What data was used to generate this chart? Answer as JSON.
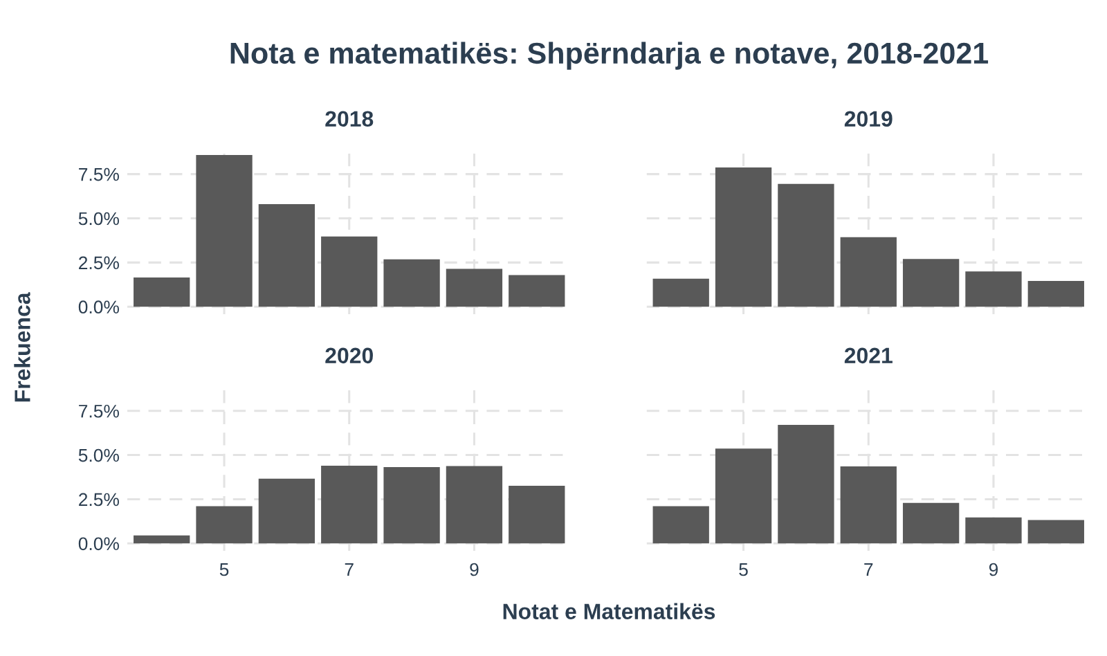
{
  "chart_data": [
    {
      "type": "bar",
      "title": "2018",
      "annotations": [
        "Nota e matematikës: Shpërndarja e notave, 2018-2021"
      ],
      "ylabel": "Frekuenca",
      "x": [
        4,
        5,
        6,
        7,
        8,
        9,
        10
      ],
      "values": [
        1.65,
        8.58,
        5.8,
        3.97,
        2.68,
        2.14,
        1.79
      ],
      "color": "#595959",
      "xlim": [
        3.45,
        10.55
      ],
      "xticks": [
        {
          "value": 5,
          "label": null
        },
        {
          "value": 7,
          "label": null
        },
        {
          "value": 9,
          "label": null
        }
      ],
      "ylim": [
        -0.43,
        9.0
      ],
      "yticks": [
        {
          "value": 0,
          "label": "0.0%"
        },
        {
          "value": 2.5,
          "label": "2.5%"
        },
        {
          "value": 5,
          "label": "5.0%"
        },
        {
          "value": 7.5,
          "label": "7.5%"
        }
      ],
      "grid": true,
      "tick_labels": "y"
    },
    {
      "type": "bar",
      "title": "2019",
      "x": [
        4,
        5,
        6,
        7,
        8,
        9,
        10
      ],
      "values": [
        1.58,
        7.88,
        6.95,
        3.93,
        2.7,
        2.0,
        1.46
      ],
      "color": "#595959",
      "xlim": [
        3.45,
        10.55
      ],
      "xticks": [
        {
          "value": 5,
          "label": null
        },
        {
          "value": 7,
          "label": null
        },
        {
          "value": 9,
          "label": null
        }
      ],
      "ylim": [
        -0.43,
        9.0
      ],
      "yticks": [
        {
          "value": 0,
          "label": null
        },
        {
          "value": 2.5,
          "label": null
        },
        {
          "value": 5,
          "label": null
        },
        {
          "value": 7.5,
          "label": null
        }
      ],
      "grid": true,
      "tick_labels": false
    },
    {
      "type": "bar",
      "title": "2020",
      "xlabel": "Notat e Matematikës",
      "x": [
        4,
        5,
        6,
        7,
        8,
        9,
        10
      ],
      "values": [
        0.45,
        2.11,
        3.66,
        4.4,
        4.32,
        4.38,
        3.26
      ],
      "color": "#595959",
      "xlim": [
        3.45,
        10.55
      ],
      "xticks": [
        5,
        7,
        9
      ],
      "ylim": [
        -0.43,
        9.0
      ],
      "yticks": [
        {
          "value": 0,
          "label": "0.0%"
        },
        {
          "value": 2.5,
          "label": "2.5%"
        },
        {
          "value": 5,
          "label": "5.0%"
        },
        {
          "value": 7.5,
          "label": "7.5%"
        }
      ],
      "grid": true
    },
    {
      "type": "bar",
      "title": "2021",
      "x": [
        4,
        5,
        6,
        7,
        8,
        9,
        10
      ],
      "values": [
        2.11,
        5.37,
        6.71,
        4.36,
        2.29,
        1.47,
        1.32
      ],
      "color": "#595959",
      "xlim": [
        3.45,
        10.55
      ],
      "xticks": [
        5,
        7,
        9
      ],
      "ylim": [
        -0.43,
        9.0
      ],
      "yticks": [
        {
          "value": 0,
          "label": null
        },
        {
          "value": 2.5,
          "label": null
        },
        {
          "value": 5,
          "label": null
        },
        {
          "value": 7.5,
          "label": null
        }
      ],
      "grid": true,
      "tick_labels": "x"
    }
  ]
}
